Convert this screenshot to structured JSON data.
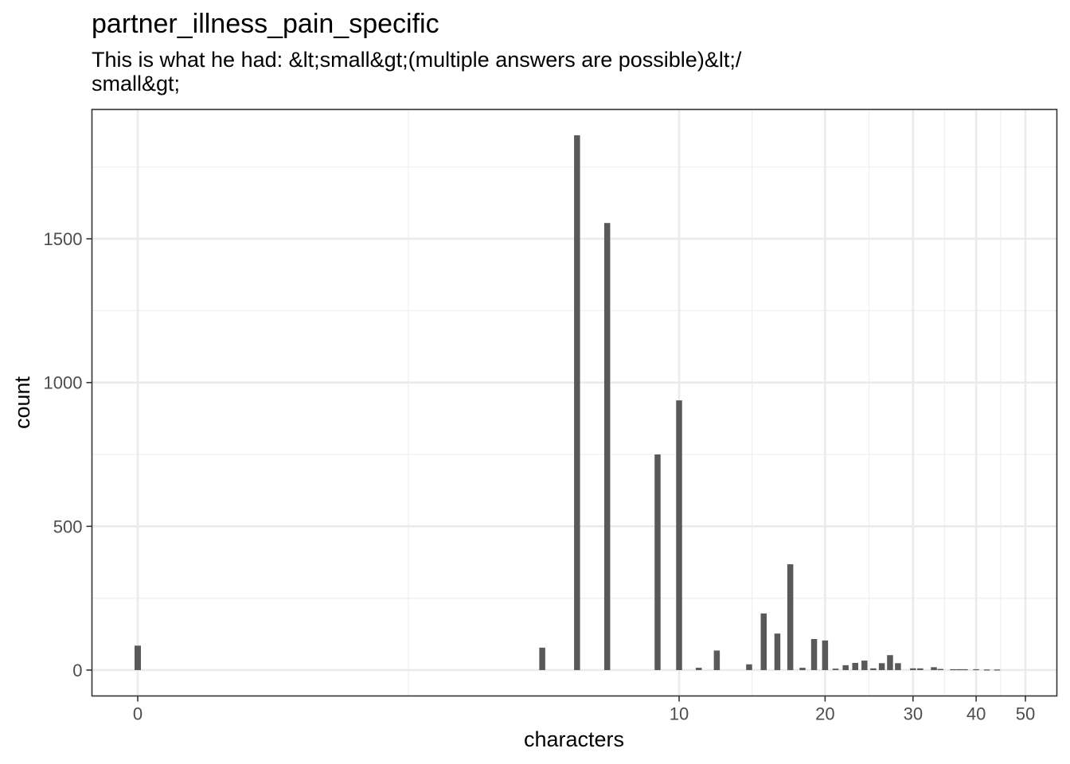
{
  "chart_data": {
    "type": "bar",
    "title": "partner_illness_pain_specific",
    "subtitle_lines": [
      "This is what he had: &lt;small&gt;(multiple answers are possible)&lt;/",
      "small&gt;"
    ],
    "xlabel": "characters",
    "ylabel": "count",
    "x_scale": "log1p",
    "x_ticks": [
      0,
      10,
      20,
      30,
      40,
      50
    ],
    "y_ticks": [
      0,
      500,
      1000,
      1500
    ],
    "ylim": [
      -90,
      1950
    ],
    "grid": true,
    "bar_color": "#595959",
    "bars": [
      {
        "x": 0,
        "y": 85
      },
      {
        "x": 5,
        "y": 78
      },
      {
        "x": 6,
        "y": 1860
      },
      {
        "x": 7,
        "y": 1555
      },
      {
        "x": 9,
        "y": 750
      },
      {
        "x": 10,
        "y": 938
      },
      {
        "x": 11,
        "y": 8
      },
      {
        "x": 12,
        "y": 68
      },
      {
        "x": 14,
        "y": 20
      },
      {
        "x": 15,
        "y": 197
      },
      {
        "x": 16,
        "y": 127
      },
      {
        "x": 17,
        "y": 368
      },
      {
        "x": 18,
        "y": 8
      },
      {
        "x": 19,
        "y": 108
      },
      {
        "x": 20,
        "y": 103
      },
      {
        "x": 21,
        "y": 5
      },
      {
        "x": 22,
        "y": 17
      },
      {
        "x": 23,
        "y": 25
      },
      {
        "x": 24,
        "y": 33
      },
      {
        "x": 25,
        "y": 6
      },
      {
        "x": 26,
        "y": 24
      },
      {
        "x": 27,
        "y": 52
      },
      {
        "x": 28,
        "y": 24
      },
      {
        "x": 30,
        "y": 6
      },
      {
        "x": 31,
        "y": 6
      },
      {
        "x": 33,
        "y": 10
      },
      {
        "x": 34,
        "y": 4
      },
      {
        "x": 36,
        "y": 3
      },
      {
        "x": 37,
        "y": 3
      },
      {
        "x": 38,
        "y": 3
      },
      {
        "x": 40,
        "y": 3
      },
      {
        "x": 42,
        "y": 2
      },
      {
        "x": 44,
        "y": 2
      }
    ]
  }
}
